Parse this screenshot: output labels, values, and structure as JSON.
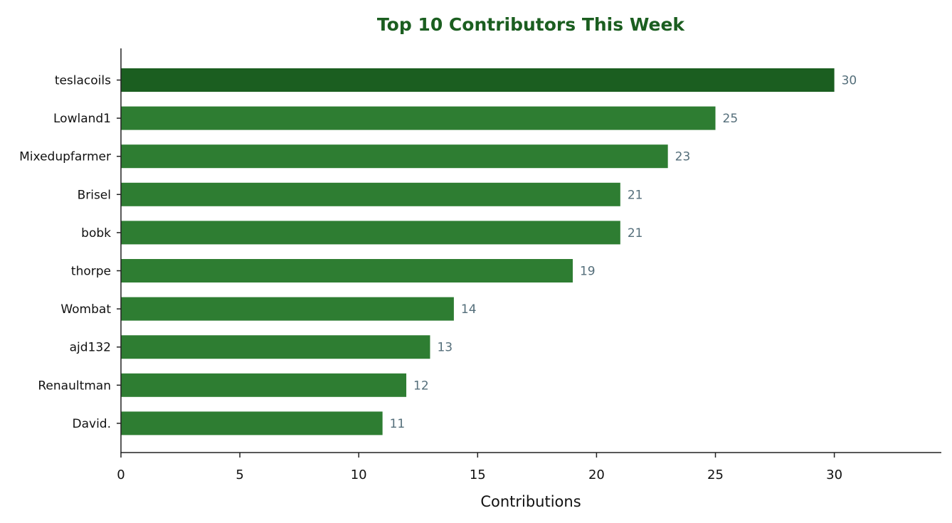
{
  "chart_data": {
    "type": "bar",
    "orientation": "horizontal",
    "title": "Top 10 Contributors This Week",
    "xlabel": "Contributions",
    "ylabel": "",
    "categories": [
      "teslacoils",
      "Lowland1",
      "Mixedupfarmer",
      "Brisel",
      "bobk",
      "thorpe",
      "Wombat",
      "ajd132",
      "Renaultman",
      "David."
    ],
    "values": [
      30,
      25,
      23,
      21,
      21,
      19,
      14,
      13,
      12,
      11
    ],
    "value_labels": [
      "30",
      "25",
      "23",
      "21",
      "21",
      "19",
      "14",
      "13",
      "12",
      "11"
    ],
    "xlim": [
      0,
      34.5
    ],
    "xticks": [
      0,
      5,
      10,
      15,
      20,
      25,
      30
    ],
    "xtick_labels": [
      "0",
      "5",
      "10",
      "15",
      "20",
      "25",
      "30"
    ],
    "grid": false,
    "legend": "none",
    "colors": {
      "top_bar": "#1b5e20",
      "bar": "#2e7d32",
      "title": "#1b5e20",
      "value_label": "#546e7a",
      "axis": "#222222"
    }
  }
}
